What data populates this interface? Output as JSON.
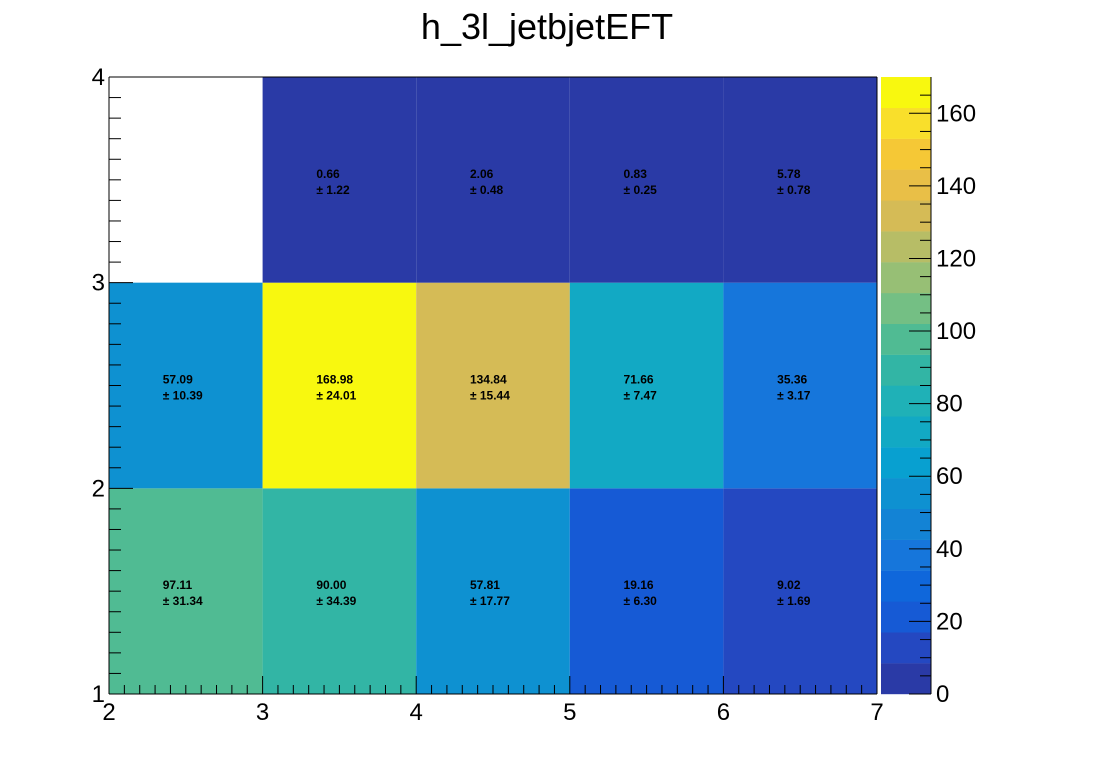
{
  "chart_data": {
    "type": "heatmap",
    "title": "h_3l_jetbjetEFT",
    "xlabel": "",
    "ylabel": "",
    "xlim": [
      2,
      7
    ],
    "ylim": [
      1,
      4
    ],
    "x_ticks": [
      "2",
      "3",
      "4",
      "5",
      "6",
      "7"
    ],
    "y_ticks": [
      "1",
      "2",
      "3",
      "4"
    ],
    "z_range": [
      0,
      170
    ],
    "z_ticks": [
      "0",
      "20",
      "40",
      "60",
      "80",
      "100",
      "120",
      "140",
      "160"
    ],
    "colormap": "parula",
    "cells": [
      {
        "x": [
          2,
          3
        ],
        "y": [
          1,
          2
        ],
        "value": 97.11,
        "error": 31.34,
        "value_label": "97.11",
        "error_label": "± 31.34"
      },
      {
        "x": [
          3,
          4
        ],
        "y": [
          1,
          2
        ],
        "value": 90.0,
        "error": 34.39,
        "value_label": "90.00",
        "error_label": "± 34.39"
      },
      {
        "x": [
          4,
          5
        ],
        "y": [
          1,
          2
        ],
        "value": 57.81,
        "error": 17.77,
        "value_label": "57.81",
        "error_label": "± 17.77"
      },
      {
        "x": [
          5,
          6
        ],
        "y": [
          1,
          2
        ],
        "value": 19.16,
        "error": 6.3,
        "value_label": "19.16",
        "error_label": "± 6.30"
      },
      {
        "x": [
          6,
          7
        ],
        "y": [
          1,
          2
        ],
        "value": 9.02,
        "error": 1.69,
        "value_label": "9.02",
        "error_label": "± 1.69"
      },
      {
        "x": [
          2,
          3
        ],
        "y": [
          2,
          3
        ],
        "value": 57.09,
        "error": 10.39,
        "value_label": "57.09",
        "error_label": "± 10.39"
      },
      {
        "x": [
          3,
          4
        ],
        "y": [
          2,
          3
        ],
        "value": 168.98,
        "error": 24.01,
        "value_label": "168.98",
        "error_label": "± 24.01"
      },
      {
        "x": [
          4,
          5
        ],
        "y": [
          2,
          3
        ],
        "value": 134.84,
        "error": 15.44,
        "value_label": "134.84",
        "error_label": "± 15.44"
      },
      {
        "x": [
          5,
          6
        ],
        "y": [
          2,
          3
        ],
        "value": 71.66,
        "error": 7.47,
        "value_label": "71.66",
        "error_label": "± 7.47"
      },
      {
        "x": [
          6,
          7
        ],
        "y": [
          2,
          3
        ],
        "value": 35.36,
        "error": 3.17,
        "value_label": "35.36",
        "error_label": "± 3.17"
      },
      {
        "x": [
          3,
          4
        ],
        "y": [
          3,
          4
        ],
        "value": 0.66,
        "error": 1.22,
        "value_label": "0.66",
        "error_label": "± 1.22"
      },
      {
        "x": [
          4,
          5
        ],
        "y": [
          3,
          4
        ],
        "value": 2.06,
        "error": 0.48,
        "value_label": "2.06",
        "error_label": "± 0.48"
      },
      {
        "x": [
          5,
          6
        ],
        "y": [
          3,
          4
        ],
        "value": 0.83,
        "error": 0.25,
        "value_label": "0.83",
        "error_label": "± 0.25"
      },
      {
        "x": [
          6,
          7
        ],
        "y": [
          3,
          4
        ],
        "value": 5.78,
        "error": 0.78,
        "value_label": "5.78",
        "error_label": "± 0.78"
      }
    ],
    "colorscale": [
      "#2a3aa6",
      "#2448c1",
      "#165ad5",
      "#0f67db",
      "#1676db",
      "#1383d5",
      "#0e91d1",
      "#08a0d0",
      "#12a9c4",
      "#1fb1b7",
      "#32b5a5",
      "#50bb93",
      "#74bf84",
      "#97bf75",
      "#b7bd66",
      "#d5bb56",
      "#e9bf47",
      "#f5c836",
      "#f9df2b",
      "#f8f80f"
    ]
  }
}
